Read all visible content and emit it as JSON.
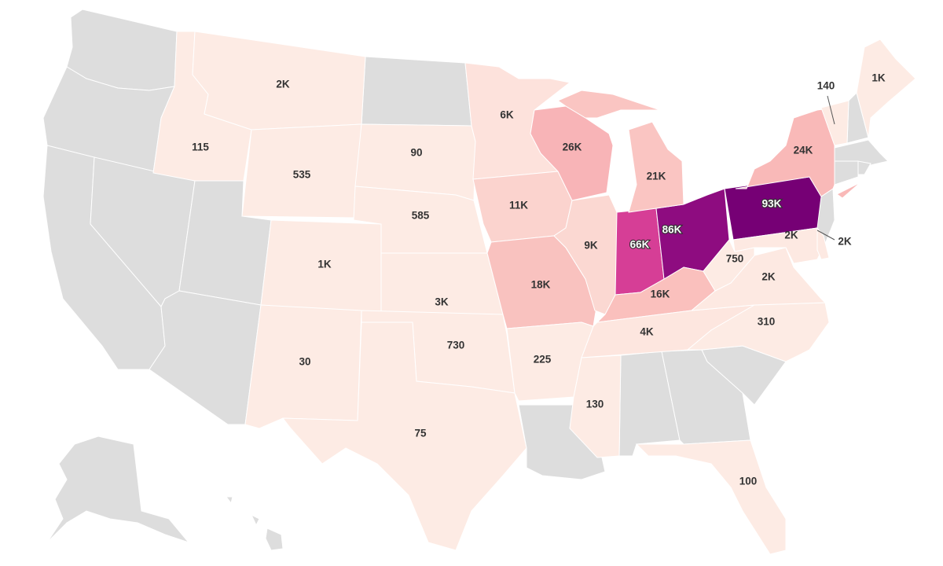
{
  "map": {
    "no_data_color": "#dddddd",
    "states": [
      {
        "code": "WA",
        "value": null,
        "color": "#dddddd"
      },
      {
        "code": "OR",
        "value": null,
        "color": "#dddddd"
      },
      {
        "code": "CA",
        "value": null,
        "color": "#dddddd"
      },
      {
        "code": "NV",
        "value": null,
        "color": "#dddddd"
      },
      {
        "code": "UT",
        "value": null,
        "color": "#dddddd"
      },
      {
        "code": "AZ",
        "value": null,
        "color": "#dddddd"
      },
      {
        "code": "ND",
        "value": null,
        "color": "#dddddd"
      },
      {
        "code": "LA",
        "value": null,
        "color": "#dddddd"
      },
      {
        "code": "AL",
        "value": null,
        "color": "#dddddd"
      },
      {
        "code": "GA",
        "value": null,
        "color": "#dddddd"
      },
      {
        "code": "SC",
        "value": null,
        "color": "#dddddd"
      },
      {
        "code": "NJ",
        "value": null,
        "color": "#dddddd"
      },
      {
        "code": "NH",
        "value": null,
        "color": "#dddddd"
      },
      {
        "code": "MA",
        "value": null,
        "color": "#dddddd"
      },
      {
        "code": "CT",
        "value": null,
        "color": "#dddddd"
      },
      {
        "code": "RI",
        "value": null,
        "color": "#dddddd"
      },
      {
        "code": "AK",
        "value": null,
        "color": "#dddddd"
      },
      {
        "code": "HI",
        "value": null,
        "color": "#dddddd"
      },
      {
        "code": "ID",
        "value": "115",
        "color": "#fdebe4"
      },
      {
        "code": "MT",
        "value": "2K",
        "color": "#fdebe4"
      },
      {
        "code": "WY",
        "value": "535",
        "color": "#fdebe4"
      },
      {
        "code": "CO",
        "value": "1K",
        "color": "#fdebe4"
      },
      {
        "code": "NM",
        "value": "30",
        "color": "#fdebe4"
      },
      {
        "code": "SD",
        "value": "90",
        "color": "#fdebe4"
      },
      {
        "code": "NE",
        "value": "585",
        "color": "#fdebe4"
      },
      {
        "code": "KS",
        "value": "3K",
        "color": "#fdebe4"
      },
      {
        "code": "OK",
        "value": "730",
        "color": "#fdebe4"
      },
      {
        "code": "TX",
        "value": "75",
        "color": "#fdebe4"
      },
      {
        "code": "MN",
        "value": "6K",
        "color": "#fde2dc"
      },
      {
        "code": "IA",
        "value": "11K",
        "color": "#fbd3ce"
      },
      {
        "code": "MO",
        "value": "18K",
        "color": "#f9c2bf"
      },
      {
        "code": "WI",
        "value": "26K",
        "color": "#f8b4b7"
      },
      {
        "code": "IL",
        "value": "9K",
        "color": "#fbd8d2"
      },
      {
        "code": "IN",
        "value": "66K",
        "color": "#d63e96"
      },
      {
        "code": "OH",
        "value": "86K",
        "color": "#8e0c80"
      },
      {
        "code": "PA",
        "value": "93K",
        "color": "#760075"
      },
      {
        "code": "MI",
        "value": "21K",
        "color": "#fac5c2"
      },
      {
        "code": "KY",
        "value": "16K",
        "color": "#fac0bd"
      },
      {
        "code": "TN",
        "value": "4K",
        "color": "#fde6df"
      },
      {
        "code": "AR",
        "value": "225",
        "color": "#fdebe4"
      },
      {
        "code": "MS",
        "value": "130",
        "color": "#fdebe4"
      },
      {
        "code": "FL",
        "value": "100",
        "color": "#fdebe4"
      },
      {
        "code": "NC",
        "value": "310",
        "color": "#fdebe4"
      },
      {
        "code": "VA",
        "value": "2K",
        "color": "#fde9e2"
      },
      {
        "code": "WV",
        "value": "750",
        "color": "#fdebe4"
      },
      {
        "code": "MD",
        "value": "2K",
        "color": "#fde9e2"
      },
      {
        "code": "DE",
        "value": "2K",
        "color": "#fde9e2"
      },
      {
        "code": "NY",
        "value": "24K",
        "color": "#f9b9b8"
      },
      {
        "code": "VT",
        "value": "140",
        "color": "#fdebe4"
      },
      {
        "code": "ME",
        "value": "1K",
        "color": "#fdebe4"
      }
    ]
  }
}
